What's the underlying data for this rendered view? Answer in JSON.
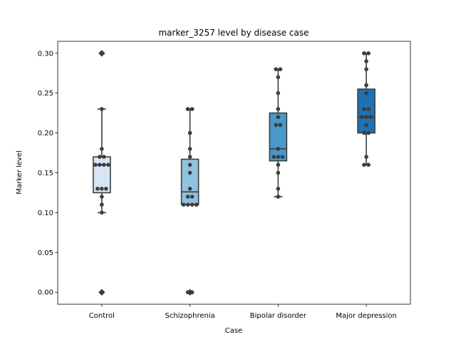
{
  "chart_data": {
    "type": "box",
    "title": "marker_3257 level by disease case",
    "xlabel": "Case",
    "ylabel": "Marker level",
    "ylim": [
      -0.015,
      0.315
    ],
    "yticks": [
      "0.00",
      "0.05",
      "0.10",
      "0.15",
      "0.20",
      "0.25",
      "0.30"
    ],
    "grid": false,
    "categories": [
      "Control",
      "Schizophrenia",
      "Bipolar disorder",
      "Major depression"
    ],
    "series": [
      {
        "category": "Control",
        "color": "#d6e6f4",
        "box": {
          "whisker_low": 0.1,
          "q1": 0.125,
          "median": 0.16,
          "q3": 0.17,
          "whisker_high": 0.23
        },
        "outliers": [
          0.3,
          0.0
        ],
        "points": [
          0.3,
          0.23,
          0.18,
          0.17,
          0.17,
          0.16,
          0.16,
          0.16,
          0.16,
          0.13,
          0.13,
          0.13,
          0.12,
          0.11,
          0.1,
          0.0
        ]
      },
      {
        "category": "Schizophrenia",
        "color": "#8fc2de",
        "box": {
          "whisker_low": 0.11,
          "q1": 0.11,
          "median": 0.126,
          "q3": 0.167,
          "whisker_high": 0.23
        },
        "outliers": [
          0.0
        ],
        "points": [
          0.23,
          0.23,
          0.2,
          0.18,
          0.17,
          0.16,
          0.15,
          0.13,
          0.12,
          0.12,
          0.11,
          0.11,
          0.11,
          0.11,
          0.0,
          0.0
        ]
      },
      {
        "category": "Bipolar disorder",
        "color": "#4a98c9",
        "box": {
          "whisker_low": 0.12,
          "q1": 0.165,
          "median": 0.18,
          "q3": 0.225,
          "whisker_high": 0.28
        },
        "outliers": [],
        "points": [
          0.28,
          0.28,
          0.27,
          0.25,
          0.23,
          0.22,
          0.21,
          0.21,
          0.18,
          0.17,
          0.17,
          0.17,
          0.16,
          0.15,
          0.13,
          0.12
        ]
      },
      {
        "category": "Major depression",
        "color": "#2070b4",
        "box": {
          "whisker_low": 0.16,
          "q1": 0.2,
          "median": 0.22,
          "q3": 0.255,
          "whisker_high": 0.3
        },
        "outliers": [],
        "points": [
          0.3,
          0.3,
          0.29,
          0.28,
          0.26,
          0.25,
          0.23,
          0.23,
          0.22,
          0.22,
          0.22,
          0.21,
          0.2,
          0.2,
          0.17,
          0.16,
          0.16
        ]
      }
    ]
  }
}
